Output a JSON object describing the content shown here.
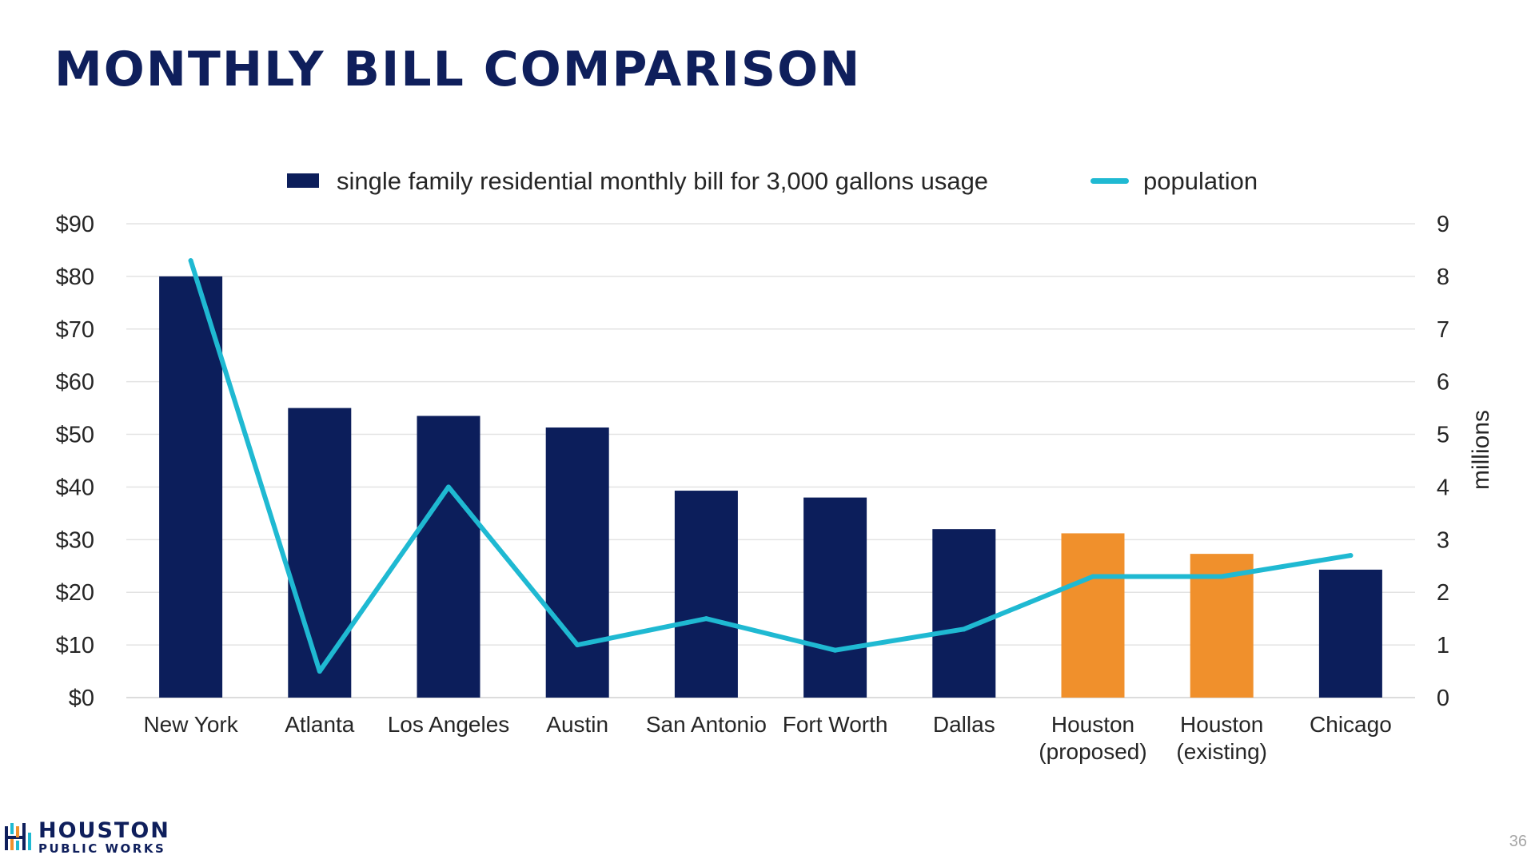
{
  "slide": {
    "title": "MONTHLY BILL COMPARISON",
    "page_number": "36",
    "logo": {
      "line1": "HOUSTON",
      "line2": "PUBLIC WORKS",
      "icon": "houston-public-works-logo-icon"
    }
  },
  "colors": {
    "bar_default": "#0c1e5b",
    "bar_houston": "#f0902c",
    "population_line": "#1fb9d2",
    "gridline": "#e3e3e3",
    "title": "#0f1f5c"
  },
  "chart_data": {
    "type": "bar",
    "categories": [
      [
        "New York"
      ],
      [
        "Atlanta"
      ],
      [
        "Los Angeles"
      ],
      [
        "Austin"
      ],
      [
        "San Antonio"
      ],
      [
        "Fort Worth"
      ],
      [
        "Dallas"
      ],
      [
        "Houston",
        "(proposed)"
      ],
      [
        "Houston",
        "(existing)"
      ],
      [
        "Chicago"
      ]
    ],
    "series": [
      {
        "name": "single family residential monthly bill for 3,000 gallons usage",
        "type": "bar",
        "axis": "left",
        "values": [
          80,
          55,
          53.5,
          51.3,
          39.3,
          38,
          32,
          31.2,
          27.3,
          24.3
        ],
        "highlight_indices": [
          7,
          8
        ]
      },
      {
        "name": "population",
        "type": "line",
        "axis": "right",
        "values": [
          8.3,
          0.5,
          4.0,
          1.0,
          1.5,
          0.9,
          1.3,
          2.3,
          2.3,
          2.7
        ]
      }
    ],
    "y_left": {
      "range": [
        0,
        90
      ],
      "ticks": [
        0,
        10,
        20,
        30,
        40,
        50,
        60,
        70,
        80,
        90
      ],
      "tick_labels": [
        "$0",
        "$10",
        "$20",
        "$30",
        "$40",
        "$50",
        "$60",
        "$70",
        "$80",
        "$90"
      ]
    },
    "y_right": {
      "range": [
        0,
        9
      ],
      "ticks": [
        0,
        1,
        2,
        3,
        4,
        5,
        6,
        7,
        8,
        9
      ],
      "tick_labels": [
        "0",
        "1",
        "2",
        "3",
        "4",
        "5",
        "6",
        "7",
        "8",
        "9"
      ],
      "label": "millions"
    },
    "grid": true,
    "legend": {
      "position": "top"
    }
  }
}
